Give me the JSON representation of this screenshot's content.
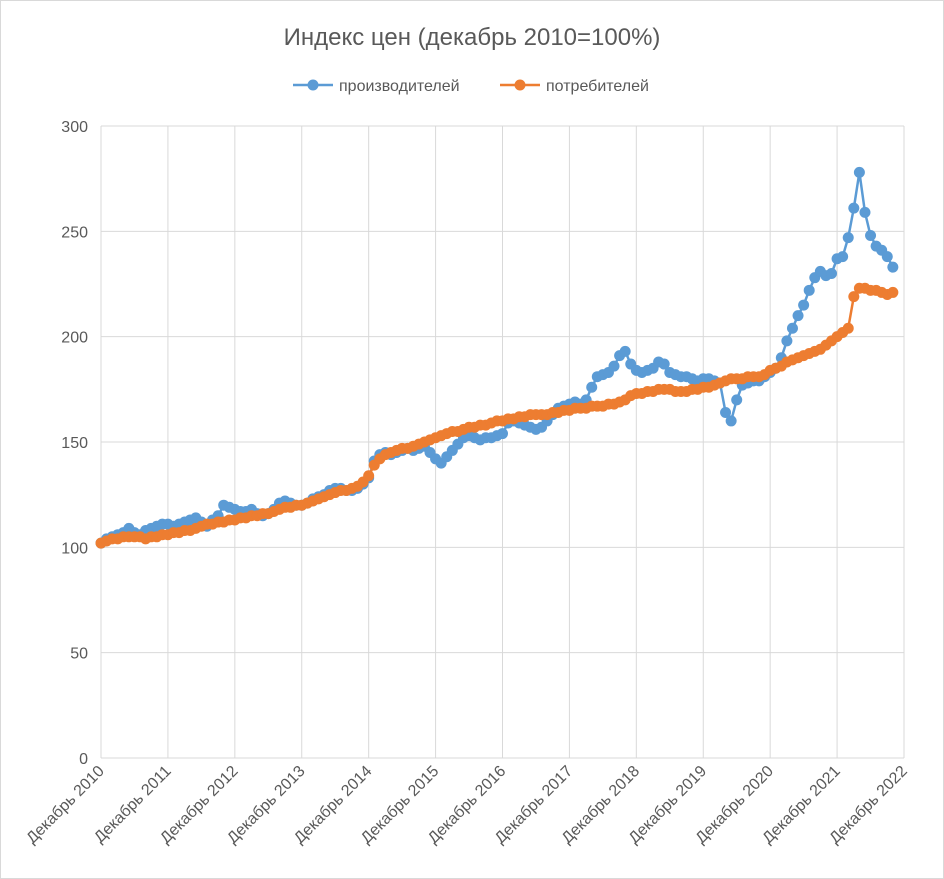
{
  "chart_data": {
    "type": "line",
    "title": "Индекс цен (декабрь 2010=100%)",
    "xlabel": "",
    "ylabel": "",
    "ylim": [
      0,
      300
    ],
    "y_ticks": [
      "0",
      "50",
      "100",
      "150",
      "200",
      "250",
      "300"
    ],
    "x_tick_labels": [
      "Декабрь 2010",
      "Декабрь 2011",
      "Декабрь 2012",
      "Декабрь 2013",
      "Декабрь 2014",
      "Декабрь 2015",
      "Декабрь 2016",
      "Декабрь 2017",
      "Декабрь 2018",
      "Декабрь 2019",
      "Декабрь 2020",
      "Декабрь 2021",
      "Декабрь 2022"
    ],
    "x_frequency": "monthly",
    "x_first": "Декабрь 2010",
    "grid": true,
    "legend_position": "top",
    "series": [
      {
        "name": "производителей",
        "color": "#5B9BD5",
        "marker": "circle",
        "values": [
          102,
          104,
          105,
          106,
          107,
          109,
          107,
          106,
          108,
          109,
          110,
          111,
          111,
          110,
          111,
          112,
          113,
          114,
          112,
          110,
          113,
          115,
          120,
          119,
          118,
          117,
          117,
          118,
          116,
          115,
          116,
          118,
          121,
          122,
          121,
          120,
          120,
          121,
          123,
          124,
          125,
          127,
          128,
          128,
          127,
          127,
          128,
          130,
          133,
          141,
          144,
          145,
          144,
          145,
          146,
          147,
          146,
          147,
          148,
          145,
          142,
          140,
          143,
          146,
          149,
          152,
          153,
          152,
          151,
          152,
          152,
          153,
          154,
          159,
          160,
          159,
          158,
          157,
          156,
          157,
          160,
          163,
          166,
          167,
          168,
          169,
          168,
          170,
          176,
          181,
          182,
          183,
          186,
          191,
          193,
          187,
          184,
          183,
          184,
          185,
          188,
          187,
          183,
          182,
          181,
          181,
          180,
          179,
          180,
          180,
          179,
          178,
          164,
          160,
          170,
          177,
          178,
          179,
          179,
          181,
          183,
          185,
          190,
          198,
          204,
          210,
          215,
          222,
          228,
          231,
          229,
          230,
          237,
          238,
          247,
          261,
          278,
          259,
          248,
          243,
          241,
          238,
          233
        ]
      },
      {
        "name": "потребителей",
        "color": "#ED7D31",
        "marker": "circle",
        "values": [
          102,
          103,
          104,
          104,
          105,
          105,
          105,
          105,
          104,
          105,
          105,
          106,
          106,
          107,
          107,
          108,
          108,
          109,
          110,
          111,
          111,
          112,
          112,
          113,
          113,
          114,
          114,
          115,
          115,
          116,
          116,
          117,
          118,
          119,
          119,
          120,
          120,
          121,
          122,
          123,
          124,
          125,
          126,
          127,
          127,
          128,
          129,
          131,
          134,
          139,
          142,
          144,
          145,
          146,
          147,
          147,
          148,
          149,
          150,
          151,
          152,
          153,
          154,
          155,
          155,
          156,
          157,
          157,
          158,
          158,
          159,
          160,
          160,
          161,
          161,
          162,
          162,
          163,
          163,
          163,
          163,
          164,
          164,
          165,
          165,
          166,
          166,
          166,
          167,
          167,
          167,
          168,
          168,
          169,
          170,
          172,
          173,
          173,
          174,
          174,
          175,
          175,
          175,
          174,
          174,
          174,
          175,
          175,
          176,
          176,
          177,
          178,
          179,
          180,
          180,
          180,
          181,
          181,
          181,
          182,
          184,
          185,
          186,
          188,
          189,
          190,
          191,
          192,
          193,
          194,
          196,
          198,
          200,
          202,
          204,
          219,
          223,
          223,
          222,
          222,
          221,
          220,
          221
        ]
      }
    ]
  }
}
